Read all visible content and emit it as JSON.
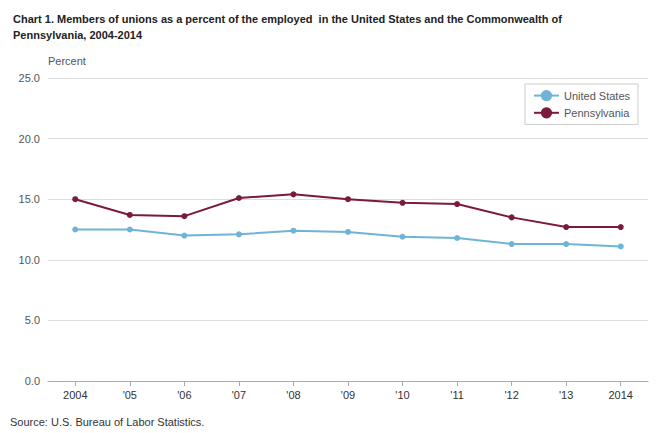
{
  "chart_data": {
    "type": "line",
    "title": "Chart 1. Members of unions as a percent of the employed  in the United States and the Commonwealth of\nPennsylvania, 2004-2014",
    "y_label": "Percent",
    "annotations": [
      "Source: U.S. Bureau of Labor Statistics."
    ],
    "categories": [
      "2004",
      "'05",
      "'06",
      "'07",
      "'08",
      "'09",
      "'10",
      "'11",
      "'12",
      "'13",
      "2014"
    ],
    "series": [
      {
        "name": "United States",
        "color": "#6EB4D6",
        "marker": "circle",
        "values": [
          12.5,
          12.5,
          12.0,
          12.1,
          12.4,
          12.3,
          11.9,
          11.8,
          11.3,
          11.3,
          11.1
        ]
      },
      {
        "name": "Pennsylvania",
        "color": "#7B1A3A",
        "marker": "circle",
        "values": [
          15.0,
          13.7,
          13.6,
          15.1,
          15.4,
          15.0,
          14.7,
          14.6,
          13.5,
          12.7,
          12.7
        ]
      }
    ],
    "ylim": [
      0.0,
      25.0
    ],
    "yticks": [
      {
        "value": 0,
        "label": "0.0"
      },
      {
        "value": 5,
        "label": "5.0"
      },
      {
        "value": 10,
        "label": "10.0"
      },
      {
        "value": 15,
        "label": "15.0"
      },
      {
        "value": 20,
        "label": "20.0"
      },
      {
        "value": 25,
        "label": "25.0"
      }
    ],
    "grid": true,
    "legend": "upper right"
  }
}
